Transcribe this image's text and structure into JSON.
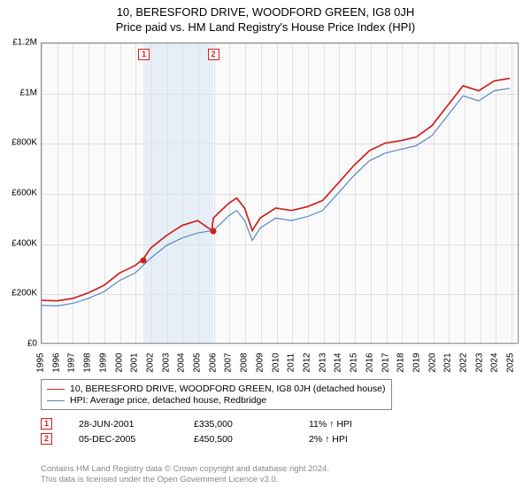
{
  "title": {
    "line1": "10, BERESFORD DRIVE, WOODFORD GREEN, IG8 0JH",
    "line2": "Price paid vs. HM Land Registry's House Price Index (HPI)"
  },
  "chart": {
    "type": "line",
    "background_color": "#fafafa",
    "border_color": "#888888",
    "grid_color": "#e0e0e0",
    "shade_color": "#e2ecf7",
    "x_min": 1995,
    "x_max": 2025.5,
    "y_min": 0,
    "y_max": 1200000,
    "y_ticks": [
      0,
      200000,
      400000,
      600000,
      800000,
      1000000,
      1200000
    ],
    "y_tick_labels": [
      "£0",
      "£200K",
      "£400K",
      "£600K",
      "£800K",
      "£1M",
      "£1.2M"
    ],
    "x_ticks": [
      1995,
      1996,
      1997,
      1998,
      1999,
      2000,
      2001,
      2002,
      2003,
      2004,
      2005,
      2006,
      2007,
      2008,
      2009,
      2010,
      2011,
      2012,
      2013,
      2014,
      2015,
      2016,
      2017,
      2018,
      2019,
      2020,
      2021,
      2022,
      2023,
      2024,
      2025
    ],
    "series": [
      {
        "name": "10, BERESFORD DRIVE, WOODFORD GREEN, IG8 0JH (detached house)",
        "color": "#d01f1f",
        "line_width": 1.7,
        "data": [
          [
            1995,
            170000
          ],
          [
            1996,
            168000
          ],
          [
            1997,
            178000
          ],
          [
            1998,
            200000
          ],
          [
            1999,
            230000
          ],
          [
            2000,
            280000
          ],
          [
            2001,
            310000
          ],
          [
            2001.5,
            335000
          ],
          [
            2002,
            380000
          ],
          [
            2003,
            430000
          ],
          [
            2004,
            470000
          ],
          [
            2005,
            490000
          ],
          [
            2005.9,
            450500
          ],
          [
            2006,
            500000
          ],
          [
            2007,
            560000
          ],
          [
            2007.5,
            580000
          ],
          [
            2008,
            540000
          ],
          [
            2008.5,
            450000
          ],
          [
            2009,
            500000
          ],
          [
            2010,
            540000
          ],
          [
            2011,
            530000
          ],
          [
            2012,
            545000
          ],
          [
            2013,
            570000
          ],
          [
            2014,
            640000
          ],
          [
            2015,
            710000
          ],
          [
            2016,
            770000
          ],
          [
            2017,
            800000
          ],
          [
            2018,
            810000
          ],
          [
            2019,
            825000
          ],
          [
            2020,
            870000
          ],
          [
            2021,
            950000
          ],
          [
            2022,
            1030000
          ],
          [
            2023,
            1010000
          ],
          [
            2024,
            1050000
          ],
          [
            2025,
            1060000
          ]
        ]
      },
      {
        "name": "HPI: Average price, detached house, Redbridge",
        "color": "#5a86bf",
        "line_width": 1.2,
        "data": [
          [
            1995,
            150000
          ],
          [
            1996,
            148000
          ],
          [
            1997,
            158000
          ],
          [
            1998,
            178000
          ],
          [
            1999,
            205000
          ],
          [
            2000,
            250000
          ],
          [
            2001,
            280000
          ],
          [
            2002,
            340000
          ],
          [
            2003,
            390000
          ],
          [
            2004,
            420000
          ],
          [
            2005,
            440000
          ],
          [
            2006,
            450000
          ],
          [
            2007,
            510000
          ],
          [
            2007.5,
            530000
          ],
          [
            2008,
            490000
          ],
          [
            2008.5,
            410000
          ],
          [
            2009,
            460000
          ],
          [
            2010,
            500000
          ],
          [
            2011,
            490000
          ],
          [
            2012,
            505000
          ],
          [
            2013,
            530000
          ],
          [
            2014,
            600000
          ],
          [
            2015,
            670000
          ],
          [
            2016,
            730000
          ],
          [
            2017,
            760000
          ],
          [
            2018,
            775000
          ],
          [
            2019,
            790000
          ],
          [
            2020,
            830000
          ],
          [
            2021,
            910000
          ],
          [
            2022,
            990000
          ],
          [
            2023,
            970000
          ],
          [
            2024,
            1010000
          ],
          [
            2025,
            1020000
          ]
        ]
      }
    ],
    "shade_range": [
      2001.5,
      2005.93
    ],
    "markers": [
      {
        "id": "1",
        "x": 2001.5,
        "y": 335000,
        "color": "#d01f1f"
      },
      {
        "id": "2",
        "x": 2005.93,
        "y": 450500,
        "color": "#d01f1f"
      }
    ]
  },
  "legend": {
    "series1": "10, BERESFORD DRIVE, WOODFORD GREEN, IG8 0JH (detached house)",
    "series2": "HPI: Average price, detached house, Redbridge"
  },
  "events": [
    {
      "id": "1",
      "date": "28-JUN-2001",
      "price": "£335,000",
      "diff": "11% ↑ HPI",
      "border_color": "#d01f1f"
    },
    {
      "id": "2",
      "date": "05-DEC-2005",
      "price": "£450,500",
      "diff": "2% ↑ HPI",
      "border_color": "#d01f1f"
    }
  ],
  "footer": {
    "line1": "Contains HM Land Registry data © Crown copyright and database right 2024.",
    "line2": "This data is licensed under the Open Government Licence v3.0."
  }
}
